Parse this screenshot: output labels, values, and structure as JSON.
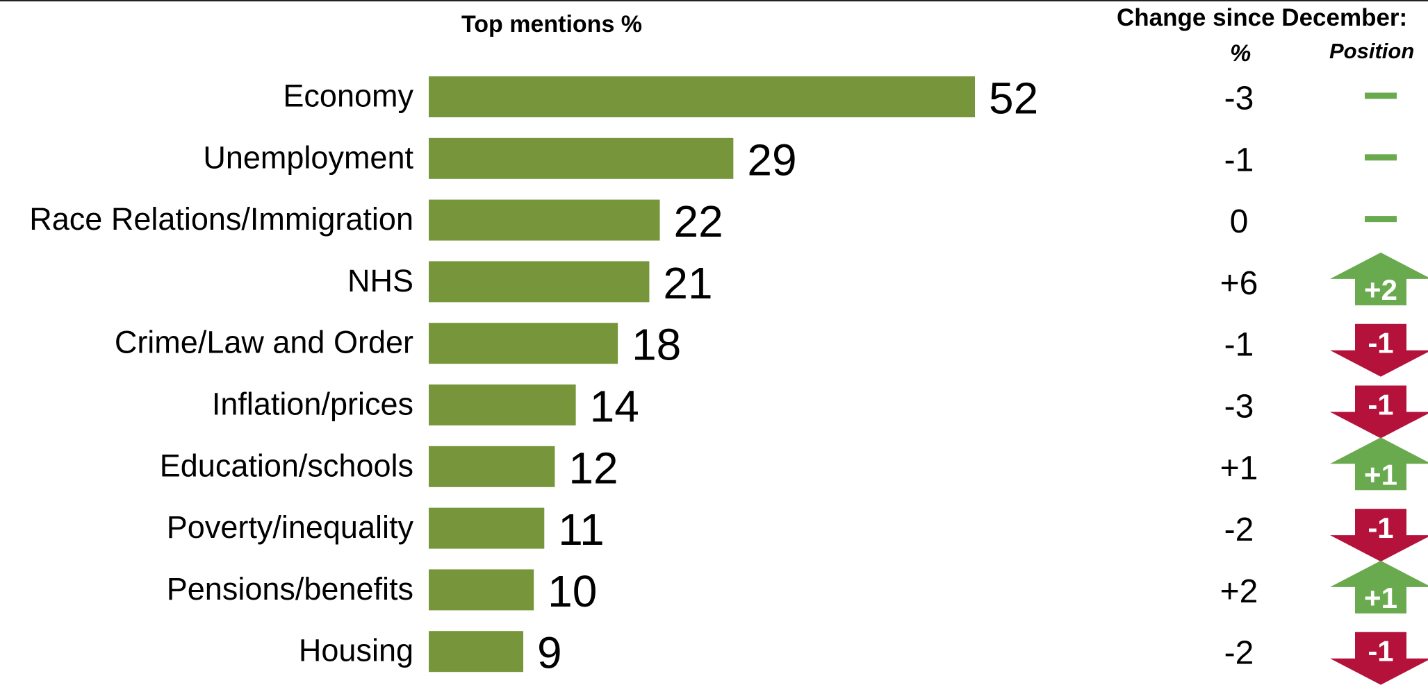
{
  "headers": {
    "chart_title": "Top mentions %",
    "change_title": "Change since December:",
    "pct_col": "%",
    "position_col": "Position"
  },
  "colors": {
    "bar": "#77963b",
    "up": "#6aaa4f",
    "down": "#b5123b",
    "no_change": "#6aaa4f"
  },
  "chart_data": {
    "type": "bar",
    "orientation": "horizontal",
    "title": "Top mentions %",
    "categories": [
      "Economy",
      "Unemployment",
      "Race Relations/Immigration",
      "NHS",
      "Crime/Law and Order",
      "Inflation/prices",
      "Education/schools",
      "Poverty/inequality",
      "Pensions/benefits",
      "Housing"
    ],
    "values": [
      52,
      29,
      22,
      21,
      18,
      14,
      12,
      11,
      10,
      9
    ],
    "change_pct": [
      "-3",
      "-1",
      "0",
      "+6",
      "-1",
      "-3",
      "+1",
      "-2",
      "+2",
      "-2"
    ],
    "position_change": [
      {
        "dir": "none",
        "label": ""
      },
      {
        "dir": "none",
        "label": ""
      },
      {
        "dir": "none",
        "label": ""
      },
      {
        "dir": "up",
        "label": "+2"
      },
      {
        "dir": "down",
        "label": "-1"
      },
      {
        "dir": "down",
        "label": "-1"
      },
      {
        "dir": "up",
        "label": "+1"
      },
      {
        "dir": "down",
        "label": "-1"
      },
      {
        "dir": "up",
        "label": "+1"
      },
      {
        "dir": "down",
        "label": "-1"
      }
    ],
    "xlim": [
      0,
      52
    ]
  }
}
